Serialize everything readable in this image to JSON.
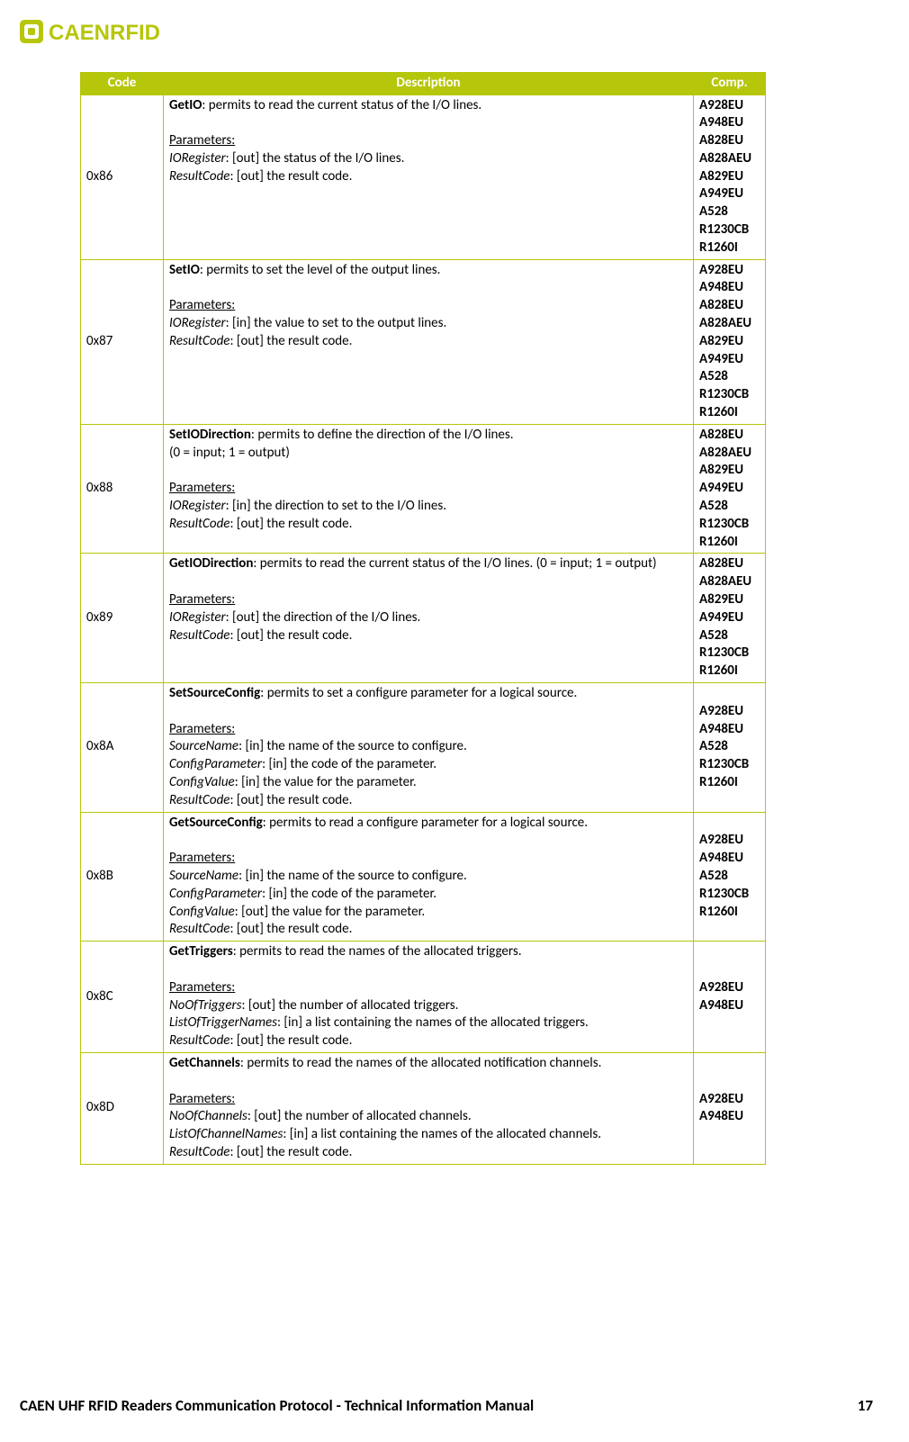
{
  "brand": {
    "name": "CAENRFID",
    "accent": "#b6c60a"
  },
  "table": {
    "headers": {
      "code": "Code",
      "desc": "Description",
      "comp": "Comp."
    },
    "rows": [
      {
        "code": "0x86",
        "cmd": "GetIO",
        "cmd_desc": ": permits to read the current status of the I/O lines.",
        "extra": "",
        "params_label": "Parameters:",
        "params": [
          {
            "name": "IORegister",
            "text": ": [out] the status of the I/O lines."
          },
          {
            "name": "ResultCode",
            "text": ": [out] the result code."
          }
        ],
        "comp": [
          "A928EU",
          "A948EU",
          "A828EU",
          "A828AEU",
          "A829EU",
          "A949EU",
          "A528",
          "R1230CB",
          "R1260I"
        ]
      },
      {
        "code": "0x87",
        "cmd": "SetIO",
        "cmd_desc": ": permits to set the level of the output lines.",
        "extra": "",
        "params_label": "Parameters:",
        "params": [
          {
            "name": "IORegister",
            "text": ": [in] the value to set to the output lines."
          },
          {
            "name": "ResultCode",
            "text": ": [out] the result code."
          }
        ],
        "comp": [
          "A928EU",
          "A948EU",
          "A828EU",
          "A828AEU",
          "A829EU",
          "A949EU",
          "A528",
          "R1230CB",
          "R1260I"
        ]
      },
      {
        "code": "0x88",
        "cmd": "SetIODirection",
        "cmd_desc": ": permits to define the direction of the I/O lines.",
        "extra": "(0 = input; 1 = output)",
        "params_label": "Parameters:",
        "params": [
          {
            "name": "IORegister",
            "text": ": [in] the direction to set to the I/O lines."
          },
          {
            "name": "ResultCode",
            "text": ": [out] the result code."
          }
        ],
        "comp": [
          "A828EU",
          "A828AEU",
          "A829EU",
          "A949EU",
          "A528",
          "R1230CB",
          "R1260I"
        ]
      },
      {
        "code": "0x89",
        "cmd": "GetIODirection",
        "cmd_desc": ": permits to read the current status of the I/O lines. (0 = input; 1 = output)",
        "extra": "",
        "params_label": "Parameters:",
        "params": [
          {
            "name": "IORegister",
            "text": ": [out] the direction of the I/O lines."
          },
          {
            "name": "ResultCode",
            "text": ": [out] the result code."
          }
        ],
        "comp": [
          "A828EU",
          "A828AEU",
          "A829EU",
          "A949EU",
          "A528",
          "R1230CB",
          "R1260I"
        ]
      },
      {
        "code": "0x8A",
        "cmd": "SetSourceConfig",
        "cmd_desc": ": permits to set a configure parameter for a logical source.",
        "extra": "",
        "params_label": "Parameters:",
        "params": [
          {
            "name": "SourceName",
            "text": ": [in] the name of the source to configure."
          },
          {
            "name": "ConfigParameter",
            "text": ": [in] the code of the parameter."
          },
          {
            "name": "ConfigValue",
            "text": ": [in] the value for the parameter."
          },
          {
            "name": "ResultCode",
            "text": ": [out] the result code."
          }
        ],
        "comp": [
          "A928EU",
          "A948EU",
          "A528",
          "R1230CB",
          "R1260I"
        ]
      },
      {
        "code": "0x8B",
        "cmd": "GetSourceConfig",
        "cmd_desc": ": permits to read a configure parameter for a logical source.",
        "extra": "",
        "params_label": "Parameters:",
        "params": [
          {
            "name": "SourceName",
            "text": ": [in] the name of the source to configure."
          },
          {
            "name": "ConfigParameter",
            "text": ": [in] the code of the parameter."
          },
          {
            "name": "ConfigValue",
            "text": ": [out] the value for the parameter."
          },
          {
            "name": "ResultCode",
            "text": ": [out] the result code."
          }
        ],
        "comp": [
          "A928EU",
          "A948EU",
          "A528",
          "R1230CB",
          "R1260I"
        ]
      },
      {
        "code": "0x8C",
        "cmd": "GetTriggers",
        "cmd_desc": ": permits to read the names of the allocated triggers.",
        "extra": "",
        "params_label": "Parameters:",
        "params": [
          {
            "name": "NoOfTriggers",
            "text": ": [out] the number of allocated triggers."
          },
          {
            "name": "ListOfTriggerNames",
            "text": ": [in] a list containing the names of the allocated triggers."
          },
          {
            "name": "ResultCode",
            "text": ": [out] the result code."
          }
        ],
        "comp": [
          "A928EU",
          "A948EU"
        ]
      },
      {
        "code": "0x8D",
        "cmd": "GetChannels",
        "cmd_desc": ": permits to read the names of the allocated notification channels.",
        "extra": "",
        "params_label": "Parameters:",
        "params": [
          {
            "name": "NoOfChannels",
            "text": ": [out] the number of allocated channels."
          },
          {
            "name": "ListOfChannelNames",
            "text": ": [in] a list containing the names of the allocated channels."
          },
          {
            "name": "ResultCode",
            "text": ": [out] the result code."
          }
        ],
        "comp": [
          "A928EU",
          "A948EU"
        ]
      }
    ]
  },
  "footer": {
    "title": "CAEN UHF RFID Readers Communication Protocol - Technical Information Manual",
    "page": "17"
  }
}
